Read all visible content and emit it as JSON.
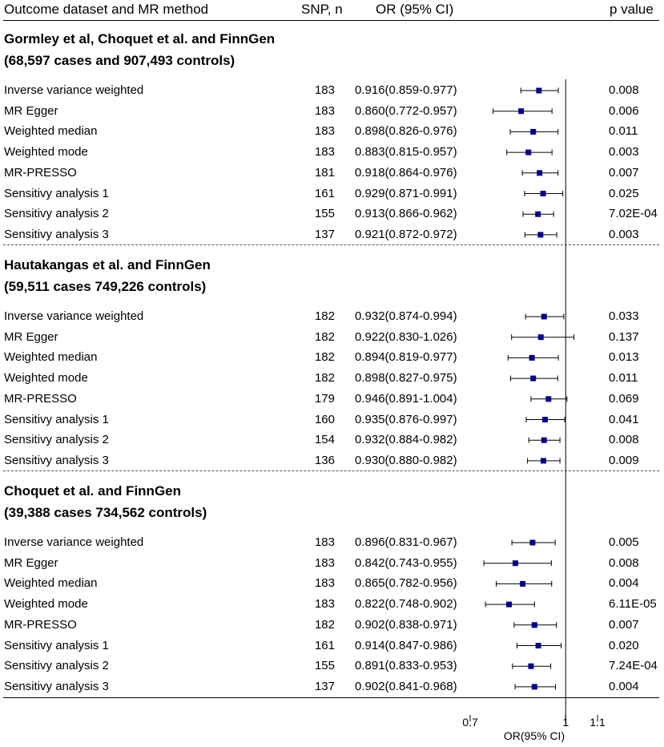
{
  "headers": {
    "col1": "Outcome dataset and MR method",
    "col2": "SNP, n",
    "col3": "OR (95% CI)",
    "col4": "p value"
  },
  "chart_data": {
    "type": "forest",
    "title": "",
    "xlabel": "OR(95% CI)",
    "x_ticks": [
      "0.7",
      "1",
      "1.1"
    ],
    "x_tick_values": [
      0.7,
      1.0,
      1.1
    ],
    "xlim": [
      0.7,
      1.1
    ],
    "reference_line": 1.0,
    "marker_color": "#00008b",
    "groups": [
      {
        "title_line1": "Gormley et al, Choquet et al. and FinnGen",
        "title_line2": "(68,597 cases and 907,493 controls)",
        "rows": [
          {
            "method": "Inverse variance weighted",
            "snp": "183",
            "or_ci": "0.916(0.859-0.977)",
            "p": "0.008",
            "or": 0.916,
            "lo": 0.859,
            "hi": 0.977
          },
          {
            "method": "MR Egger",
            "snp": "183",
            "or_ci": "0.860(0.772-0.957)",
            "p": "0.006",
            "or": 0.86,
            "lo": 0.772,
            "hi": 0.957
          },
          {
            "method": "Weighted median",
            "snp": "183",
            "or_ci": "0.898(0.826-0.976)",
            "p": "0.011",
            "or": 0.898,
            "lo": 0.826,
            "hi": 0.976
          },
          {
            "method": "Weighted mode",
            "snp": "183",
            "or_ci": "0.883(0.815-0.957)",
            "p": "0.003",
            "or": 0.883,
            "lo": 0.815,
            "hi": 0.957
          },
          {
            "method": "MR-PRESSO",
            "snp": "181",
            "or_ci": "0.918(0.864-0.976)",
            "p": "0.007",
            "or": 0.918,
            "lo": 0.864,
            "hi": 0.976
          },
          {
            "method": "Sensitivy analysis 1",
            "snp": "161",
            "or_ci": "0.929(0.871-0.991)",
            "p": "0.025",
            "or": 0.929,
            "lo": 0.871,
            "hi": 0.991
          },
          {
            "method": "Sensitivy analysis 2",
            "snp": "155",
            "or_ci": "0.913(0.866-0.962)",
            "p": "7.02E-04",
            "or": 0.913,
            "lo": 0.866,
            "hi": 0.962
          },
          {
            "method": "Sensitivy analysis 3",
            "snp": "137",
            "or_ci": "0.921(0.872-0.972)",
            "p": "0.003",
            "or": 0.921,
            "lo": 0.872,
            "hi": 0.972
          }
        ]
      },
      {
        "title_line1": "Hautakangas et al. and FinnGen",
        "title_line2": "(59,511 cases 749,226 controls)",
        "rows": [
          {
            "method": "Inverse variance weighted",
            "snp": "182",
            "or_ci": "0.932(0.874-0.994)",
            "p": "0.033",
            "or": 0.932,
            "lo": 0.874,
            "hi": 0.994
          },
          {
            "method": "MR Egger",
            "snp": "182",
            "or_ci": "0.922(0.830-1.026)",
            "p": "0.137",
            "or": 0.922,
            "lo": 0.83,
            "hi": 1.026
          },
          {
            "method": "Weighted median",
            "snp": "182",
            "or_ci": "0.894(0.819-0.977)",
            "p": "0.013",
            "or": 0.894,
            "lo": 0.819,
            "hi": 0.977
          },
          {
            "method": "Weighted mode",
            "snp": "182",
            "or_ci": "0.898(0.827-0.975)",
            "p": "0.011",
            "or": 0.898,
            "lo": 0.827,
            "hi": 0.975
          },
          {
            "method": "MR-PRESSO",
            "snp": "179",
            "or_ci": "0.946(0.891-1.004)",
            "p": "0.069",
            "or": 0.946,
            "lo": 0.891,
            "hi": 1.004
          },
          {
            "method": "Sensitivy analysis 1",
            "snp": "160",
            "or_ci": "0.935(0.876-0.997)",
            "p": "0.041",
            "or": 0.935,
            "lo": 0.876,
            "hi": 0.997
          },
          {
            "method": "Sensitivy analysis 2",
            "snp": "154",
            "or_ci": "0.932(0.884-0.982)",
            "p": "0.008",
            "or": 0.932,
            "lo": 0.884,
            "hi": 0.982
          },
          {
            "method": "Sensitivy analysis 3",
            "snp": "136",
            "or_ci": "0.930(0.880-0.982)",
            "p": "0.009",
            "or": 0.93,
            "lo": 0.88,
            "hi": 0.982
          }
        ]
      },
      {
        "title_line1": "Choquet et al. and FinnGen",
        "title_line2": "(39,388 cases 734,562 controls)",
        "rows": [
          {
            "method": "Inverse variance weighted",
            "snp": "183",
            "or_ci": "0.896(0.831-0.967)",
            "p": "0.005",
            "or": 0.896,
            "lo": 0.831,
            "hi": 0.967
          },
          {
            "method": "MR Egger",
            "snp": "183",
            "or_ci": "0.842(0.743-0.955)",
            "p": "0.008",
            "or": 0.842,
            "lo": 0.743,
            "hi": 0.955
          },
          {
            "method": "Weighted median",
            "snp": "183",
            "or_ci": "0.865(0.782-0.956)",
            "p": "0.004",
            "or": 0.865,
            "lo": 0.782,
            "hi": 0.956
          },
          {
            "method": "Weighted mode",
            "snp": "183",
            "or_ci": "0.822(0.748-0.902)",
            "p": "6.11E-05",
            "or": 0.822,
            "lo": 0.748,
            "hi": 0.902
          },
          {
            "method": "MR-PRESSO",
            "snp": "182",
            "or_ci": "0.902(0.838-0.971)",
            "p": "0.007",
            "or": 0.902,
            "lo": 0.838,
            "hi": 0.971
          },
          {
            "method": "Sensitivy analysis 1",
            "snp": "161",
            "or_ci": "0.914(0.847-0.986)",
            "p": "0.020",
            "or": 0.914,
            "lo": 0.847,
            "hi": 0.986
          },
          {
            "method": "Sensitivy analysis 2",
            "snp": "155",
            "or_ci": "0.891(0.833-0.953)",
            "p": "7.24E-04",
            "or": 0.891,
            "lo": 0.833,
            "hi": 0.953
          },
          {
            "method": "Sensitivy analysis 3",
            "snp": "137",
            "or_ci": "0.902(0.841-0.968)",
            "p": "0.004",
            "or": 0.902,
            "lo": 0.841,
            "hi": 0.968
          }
        ]
      }
    ]
  }
}
